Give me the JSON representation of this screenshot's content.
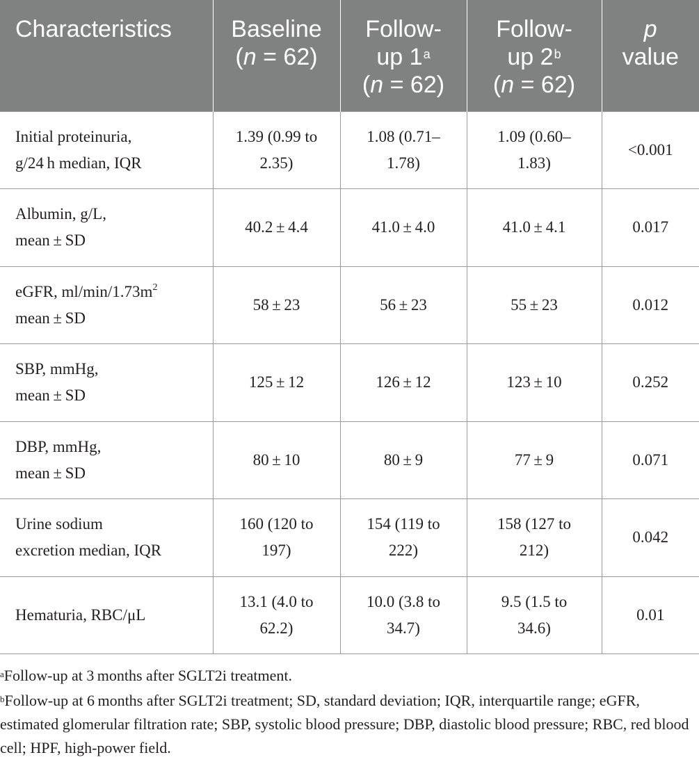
{
  "table": {
    "headers": {
      "characteristics": "Characteristics",
      "baseline": {
        "line1": "Baseline",
        "n_prefix": "(",
        "n_italic": "n",
        "n_suffix": " = 62)"
      },
      "follow_up_1": {
        "line1": "Follow-",
        "line2": "up 1",
        "sup": "a",
        "n_prefix": "(",
        "n_italic": "n",
        "n_suffix": " = 62)"
      },
      "follow_up_2": {
        "line1": "Follow-",
        "line2": "up 2",
        "sup": "b",
        "n_prefix": "(",
        "n_italic": "n",
        "n_suffix": " = 62)"
      },
      "p_value": {
        "line1_italic": "p",
        "line2": "value"
      }
    },
    "rows": [
      {
        "label_line1": "Initial proteinuria,",
        "label_line2": "g/24 h median, IQR",
        "baseline": [
          "1.39 (0.99 to",
          "2.35)"
        ],
        "follow_up_1": [
          "1.08 (0.71–",
          "1.78)"
        ],
        "follow_up_2": [
          "1.09 (0.60–",
          "1.83)"
        ],
        "p": "<0.001"
      },
      {
        "label_line1": "Albumin, g/L,",
        "label_line2": "mean ± SD",
        "baseline": [
          "40.2 ± 4.4"
        ],
        "follow_up_1": [
          "41.0 ± 4.0"
        ],
        "follow_up_2": [
          "41.0 ± 4.1"
        ],
        "p": "0.017"
      },
      {
        "label_line1": "eGFR, ml/min/1.73m",
        "label_line1_sup": "2",
        "label_line2": "mean ± SD",
        "baseline": [
          "58 ± 23"
        ],
        "follow_up_1": [
          "56 ± 23"
        ],
        "follow_up_2": [
          "55 ± 23"
        ],
        "p": "0.012"
      },
      {
        "label_line1": "SBP, mmHg,",
        "label_line2": "mean ± SD",
        "baseline": [
          "125 ± 12"
        ],
        "follow_up_1": [
          "126 ± 12"
        ],
        "follow_up_2": [
          "123 ± 10"
        ],
        "p": "0.252"
      },
      {
        "label_line1": "DBP, mmHg,",
        "label_line2": "mean ± SD",
        "baseline": [
          "80 ± 10"
        ],
        "follow_up_1": [
          "80 ± 9"
        ],
        "follow_up_2": [
          "77 ± 9"
        ],
        "p": "0.071"
      },
      {
        "label_line1": "Urine sodium",
        "label_line2": "excretion median, IQR",
        "baseline": [
          "160 (120 to",
          "197)"
        ],
        "follow_up_1": [
          "154 (119 to",
          "222)"
        ],
        "follow_up_2": [
          "158 (127 to",
          "212)"
        ],
        "p": "0.042"
      },
      {
        "label_line1": "Hematuria, RBC/μL",
        "label_line2": "",
        "baseline": [
          "13.1 (4.0 to",
          "62.2)"
        ],
        "follow_up_1": [
          "10.0 (3.8 to",
          "34.7)"
        ],
        "follow_up_2": [
          "9.5 (1.5 to",
          "34.6)"
        ],
        "p": "0.01"
      }
    ]
  },
  "footnotes": {
    "a": {
      "marker": "a",
      "text": "Follow-up at 3 months after SGLT2i treatment."
    },
    "b": {
      "marker": "b",
      "text": "Follow-up at 6 months after SGLT2i treatment; SD, standard deviation; IQR, interquartile range; eGFR, estimated glomerular filtration rate; SBP, systolic blood pressure; DBP, diastolic blood pressure; RBC, red blood cell; HPF, high-power field."
    }
  },
  "colors": {
    "header_background": "#808181",
    "header_text": "#ffffff",
    "grid_line": "#9b9b9b",
    "body_text": "#231f20"
  }
}
